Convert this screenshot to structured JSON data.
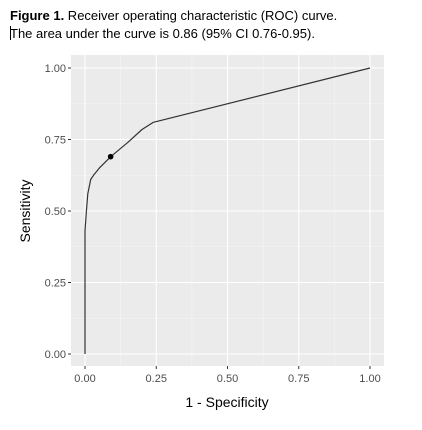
{
  "caption": {
    "label": "Figure 1.",
    "title_rest": " Receiver operating characteristic (ROC) curve.",
    "line2": "The area under the curve is 0.86 (95% CI 0.76-0.95)."
  },
  "chart_data": {
    "type": "line",
    "title": "",
    "xlabel": "1 - Specificity",
    "ylabel": "Sensitivity",
    "xlim": [
      0,
      1
    ],
    "ylim": [
      0,
      1
    ],
    "x_ticks": [
      "0.00",
      "0.25",
      "0.50",
      "0.75",
      "1.00"
    ],
    "y_ticks": [
      "0.00",
      "0.25",
      "0.50",
      "0.75",
      "1.00"
    ],
    "grid": true,
    "series": [
      {
        "x": [
          0,
          0,
          0.005,
          0.01,
          0.02,
          0.03,
          0.05,
          0.09,
          0.15,
          0.2,
          0.24,
          1.0
        ],
        "y": [
          0,
          0.43,
          0.5,
          0.56,
          0.61,
          0.625,
          0.65,
          0.69,
          0.74,
          0.785,
          0.81,
          1.0
        ],
        "color": "#333333"
      }
    ],
    "marker": {
      "x": 0.09,
      "y": 0.69,
      "color": "#000000"
    }
  }
}
